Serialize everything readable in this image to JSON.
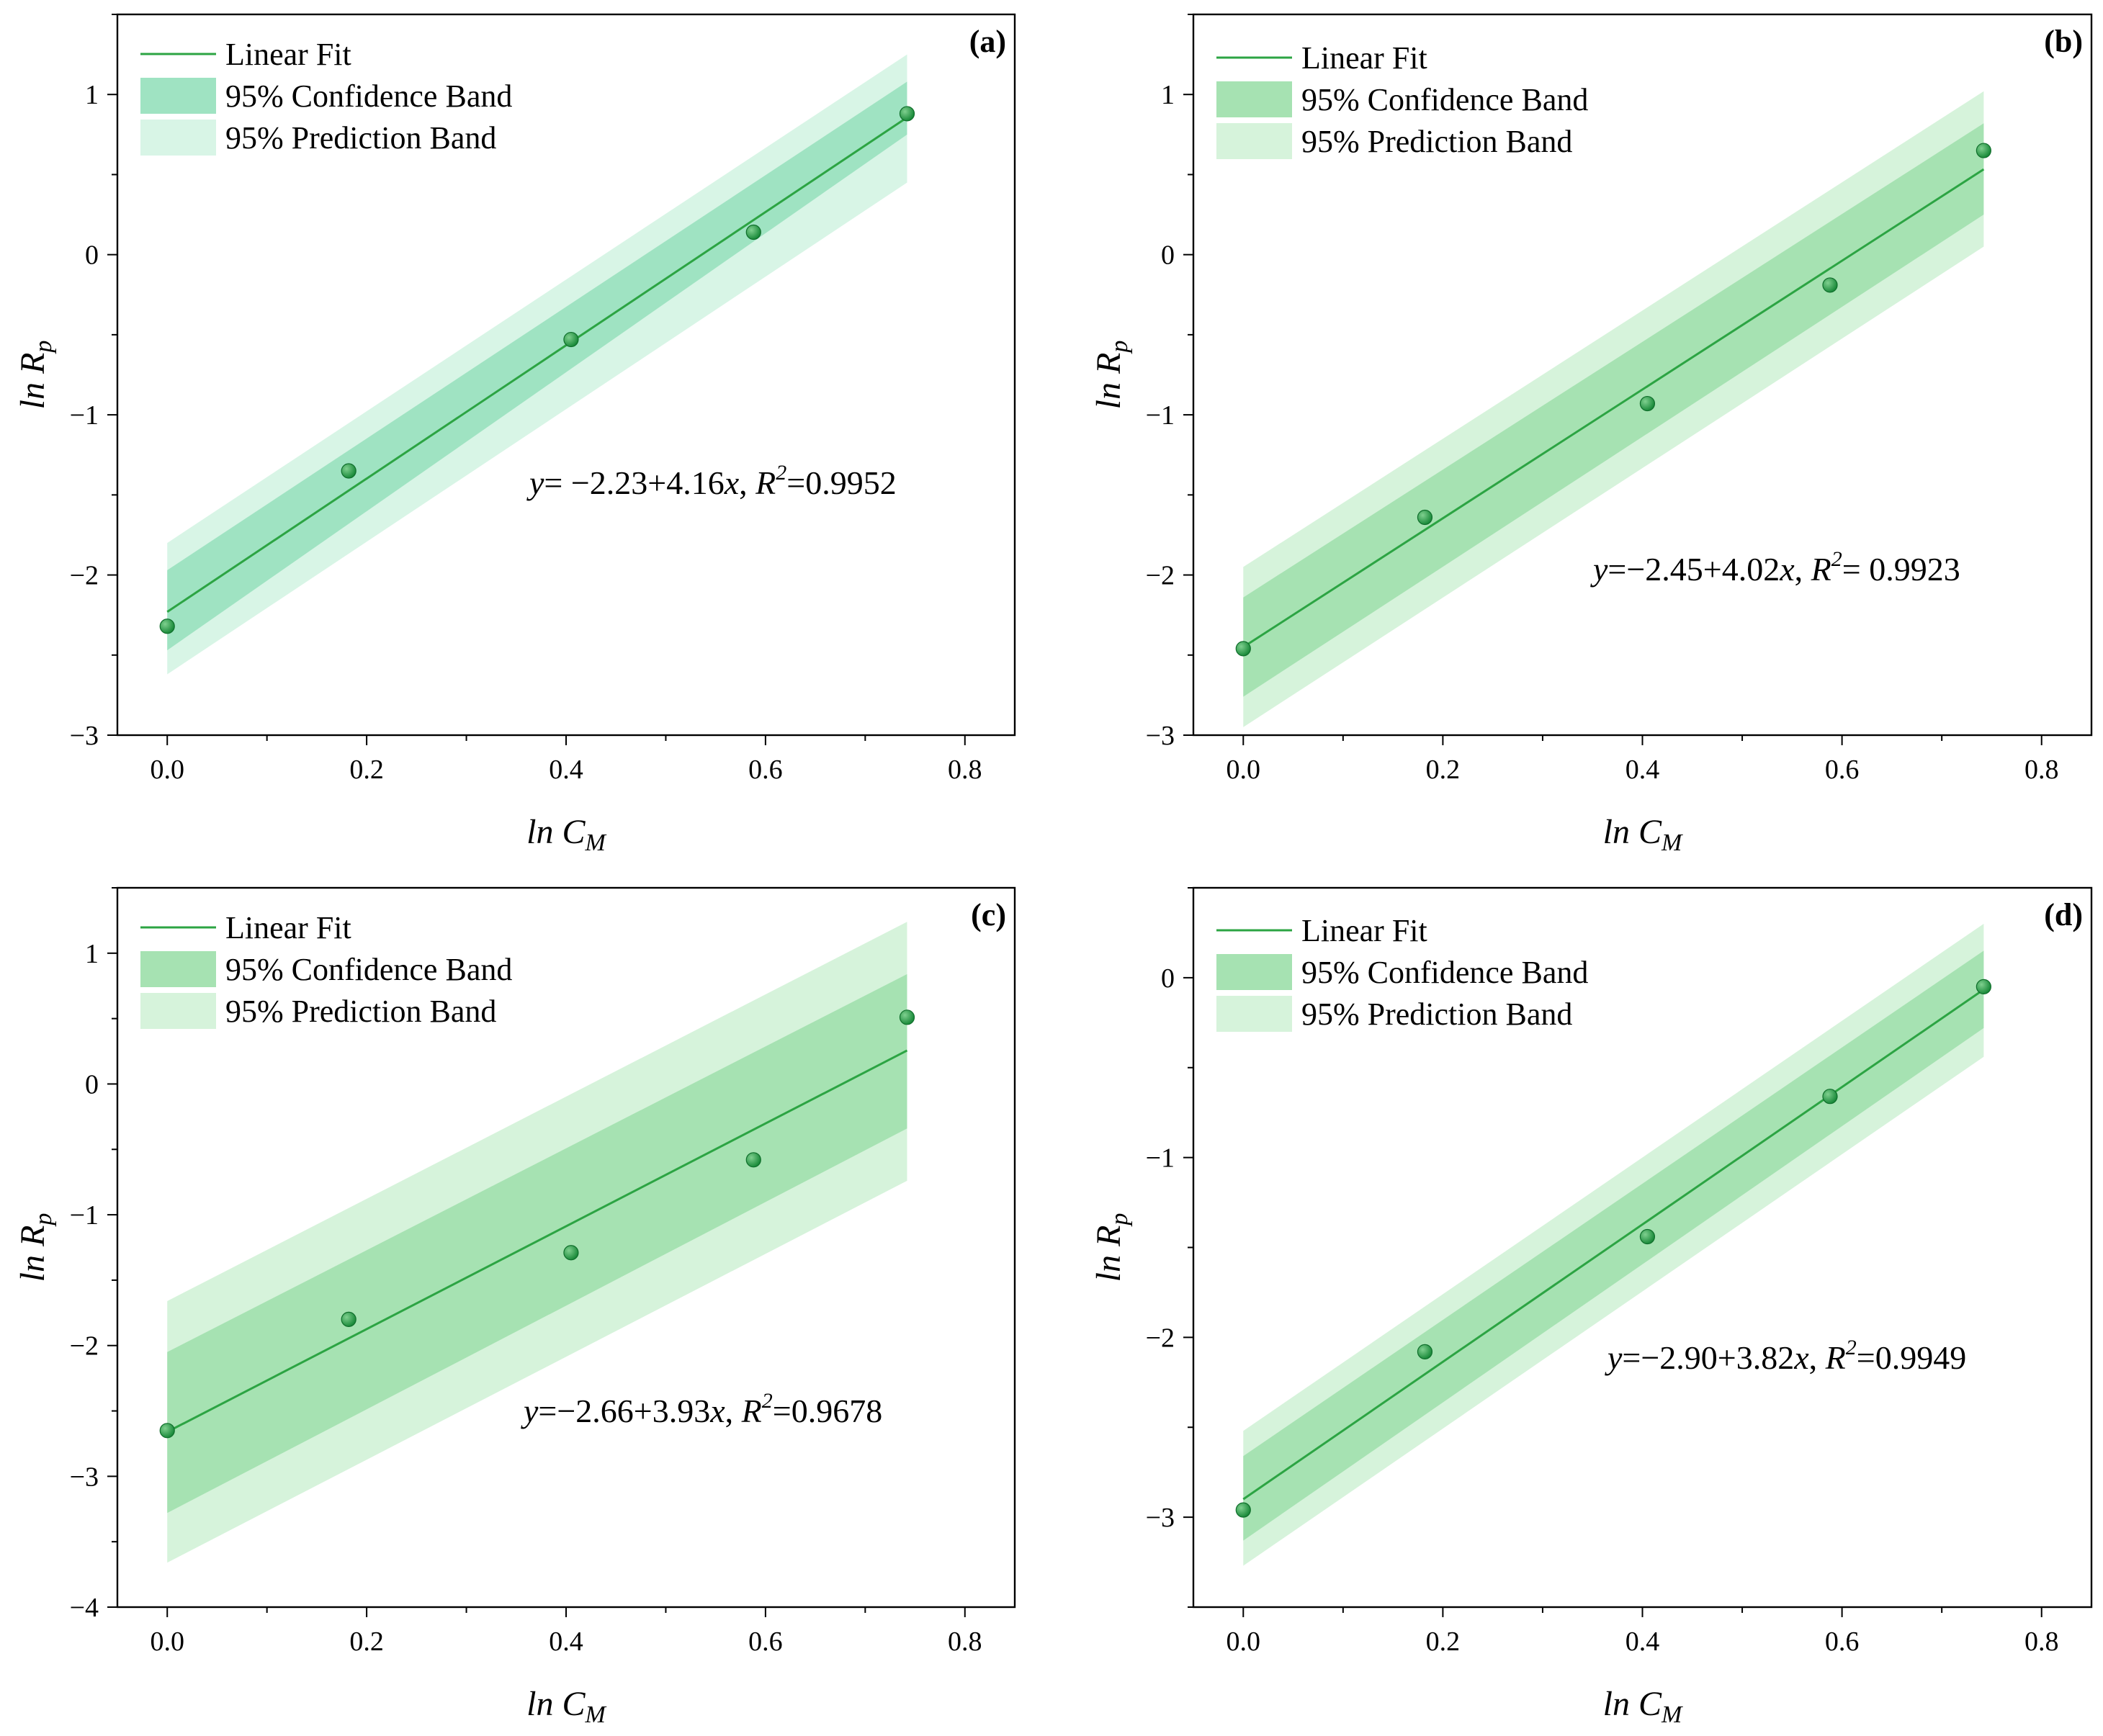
{
  "colors": {
    "fit_line": "#2ca443",
    "confidence_band_a": "#9fe3c2",
    "confidence_band": "#a6e2b2",
    "prediction_band_a": "#d8f5e6",
    "prediction_band": "#d6f3db",
    "marker": "#1a8a3a",
    "marker_highlight": "#7fd08f"
  },
  "legend": {
    "fit": "Linear Fit",
    "confidence": "95% Confidence Band",
    "prediction": "95% Prediction Band"
  },
  "chart_data": [
    {
      "id": "a",
      "label": "(a)",
      "type": "scatter",
      "xlabel": "ln C",
      "xlabel_sub": "M",
      "ylabel": "ln R",
      "ylabel_sub": "p",
      "xlim": [
        -0.05,
        0.85
      ],
      "ylim": [
        -3,
        1.5
      ],
      "xticks": [
        0.0,
        0.2,
        0.4,
        0.6,
        0.8
      ],
      "xtick_labels": [
        "0.0",
        "0.2",
        "0.4",
        "0.6",
        "0.8"
      ],
      "yticks": [
        1,
        0,
        -1,
        -2,
        -3
      ],
      "ytick_labels": [
        "1",
        "0",
        "−1",
        "−2",
        "−3"
      ],
      "x": [
        0.0,
        0.182,
        0.405,
        0.588,
        0.742
      ],
      "y": [
        -2.32,
        -1.35,
        -0.53,
        0.14,
        0.88
      ],
      "fit": {
        "intercept": -2.23,
        "slope": 4.16
      },
      "confidence_band": {
        "x": [
          0.0,
          0.742
        ],
        "lower": [
          -2.47,
          0.75
        ],
        "upper": [
          -1.97,
          1.08
        ]
      },
      "prediction_band": {
        "x": [
          0.0,
          0.742
        ],
        "lower": [
          -2.62,
          0.45
        ],
        "upper": [
          -1.8,
          1.25
        ]
      },
      "equation": {
        "y": "y",
        "lhs": "= −2.23+4.16",
        "x": "x",
        "comma": ", ",
        "R": "R",
        "sup": "2",
        "rhs": "=0.9952"
      }
    },
    {
      "id": "b",
      "label": "(b)",
      "type": "scatter",
      "xlabel": "ln C",
      "xlabel_sub": "M",
      "ylabel": "ln R",
      "ylabel_sub": "p",
      "xlim": [
        -0.05,
        0.85
      ],
      "ylim": [
        -3,
        1.5
      ],
      "xticks": [
        0.0,
        0.2,
        0.4,
        0.6,
        0.8
      ],
      "xtick_labels": [
        "0.0",
        "0.2",
        "0.4",
        "0.6",
        "0.8"
      ],
      "yticks": [
        1,
        0,
        -1,
        -2,
        -3
      ],
      "ytick_labels": [
        "1",
        "0",
        "−1",
        "−2",
        "−3"
      ],
      "x": [
        0.0,
        0.182,
        0.405,
        0.588,
        0.742
      ],
      "y": [
        -2.46,
        -1.64,
        -0.93,
        -0.19,
        0.65
      ],
      "fit": {
        "intercept": -2.45,
        "slope": 4.02
      },
      "confidence_band": {
        "x": [
          0.0,
          0.742
        ],
        "lower": [
          -2.76,
          0.25
        ],
        "upper": [
          -2.14,
          0.82
        ]
      },
      "prediction_band": {
        "x": [
          0.0,
          0.742
        ],
        "lower": [
          -2.95,
          0.05
        ],
        "upper": [
          -1.95,
          1.02
        ]
      },
      "equation": {
        "y": "y",
        "lhs": "=−2.45+4.02",
        "x": "x",
        "comma": ", ",
        "R": "R",
        "sup": "2",
        "rhs": "= 0.9923"
      }
    },
    {
      "id": "c",
      "label": "(c)",
      "type": "scatter",
      "xlabel": "ln C",
      "xlabel_sub": "M",
      "ylabel": "ln R",
      "ylabel_sub": "p",
      "xlim": [
        -0.05,
        0.85
      ],
      "ylim": [
        -4,
        1.5
      ],
      "xticks": [
        0.0,
        0.2,
        0.4,
        0.6,
        0.8
      ],
      "xtick_labels": [
        "0.0",
        "0.2",
        "0.4",
        "0.6",
        "0.8"
      ],
      "yticks": [
        1,
        0,
        -1,
        -2,
        -3,
        -4
      ],
      "ytick_labels": [
        "1",
        "0",
        "−1",
        "−2",
        "−3",
        "−4"
      ],
      "x": [
        0.0,
        0.182,
        0.405,
        0.588,
        0.742
      ],
      "y": [
        -2.65,
        -1.8,
        -1.29,
        -0.58,
        0.51
      ],
      "fit": {
        "intercept": -2.66,
        "slope": 3.93
      },
      "confidence_band": {
        "x": [
          0.0,
          0.742
        ],
        "lower": [
          -3.28,
          -0.34
        ],
        "upper": [
          -2.05,
          0.84
        ]
      },
      "prediction_band": {
        "x": [
          0.0,
          0.742
        ],
        "lower": [
          -3.66,
          -0.74
        ],
        "upper": [
          -1.66,
          1.24
        ]
      },
      "equation": {
        "y": "y",
        "lhs": "=−2.66+3.93",
        "x": "x",
        "comma": ", ",
        "R": "R",
        "sup": "2",
        "rhs": "=0.9678"
      }
    },
    {
      "id": "d",
      "label": "(d)",
      "type": "scatter",
      "xlabel": "ln C",
      "xlabel_sub": "M",
      "ylabel": "ln R",
      "ylabel_sub": "p",
      "xlim": [
        -0.05,
        0.85
      ],
      "ylim": [
        -3.5,
        0.5
      ],
      "xticks": [
        0.0,
        0.2,
        0.4,
        0.6,
        0.8
      ],
      "xtick_labels": [
        "0.0",
        "0.2",
        "0.4",
        "0.6",
        "0.8"
      ],
      "yticks": [
        0,
        -1,
        -2,
        -3
      ],
      "ytick_labels": [
        "0",
        "−1",
        "−2",
        "−3"
      ],
      "x": [
        0.0,
        0.182,
        0.405,
        0.588,
        0.742
      ],
      "y": [
        -2.96,
        -2.08,
        -1.44,
        -0.66,
        -0.05
      ],
      "fit": {
        "intercept": -2.9,
        "slope": 3.82
      },
      "confidence_band": {
        "x": [
          0.0,
          0.742
        ],
        "lower": [
          -3.13,
          -0.28
        ],
        "upper": [
          -2.66,
          0.15
        ]
      },
      "prediction_band": {
        "x": [
          0.0,
          0.742
        ],
        "lower": [
          -3.27,
          -0.44
        ],
        "upper": [
          -2.52,
          0.3
        ]
      },
      "equation": {
        "y": "y",
        "lhs": "=−2.90+3.82",
        "x": "x",
        "comma": ", ",
        "R": "R",
        "sup": "2",
        "rhs": "=0.9949"
      }
    }
  ]
}
